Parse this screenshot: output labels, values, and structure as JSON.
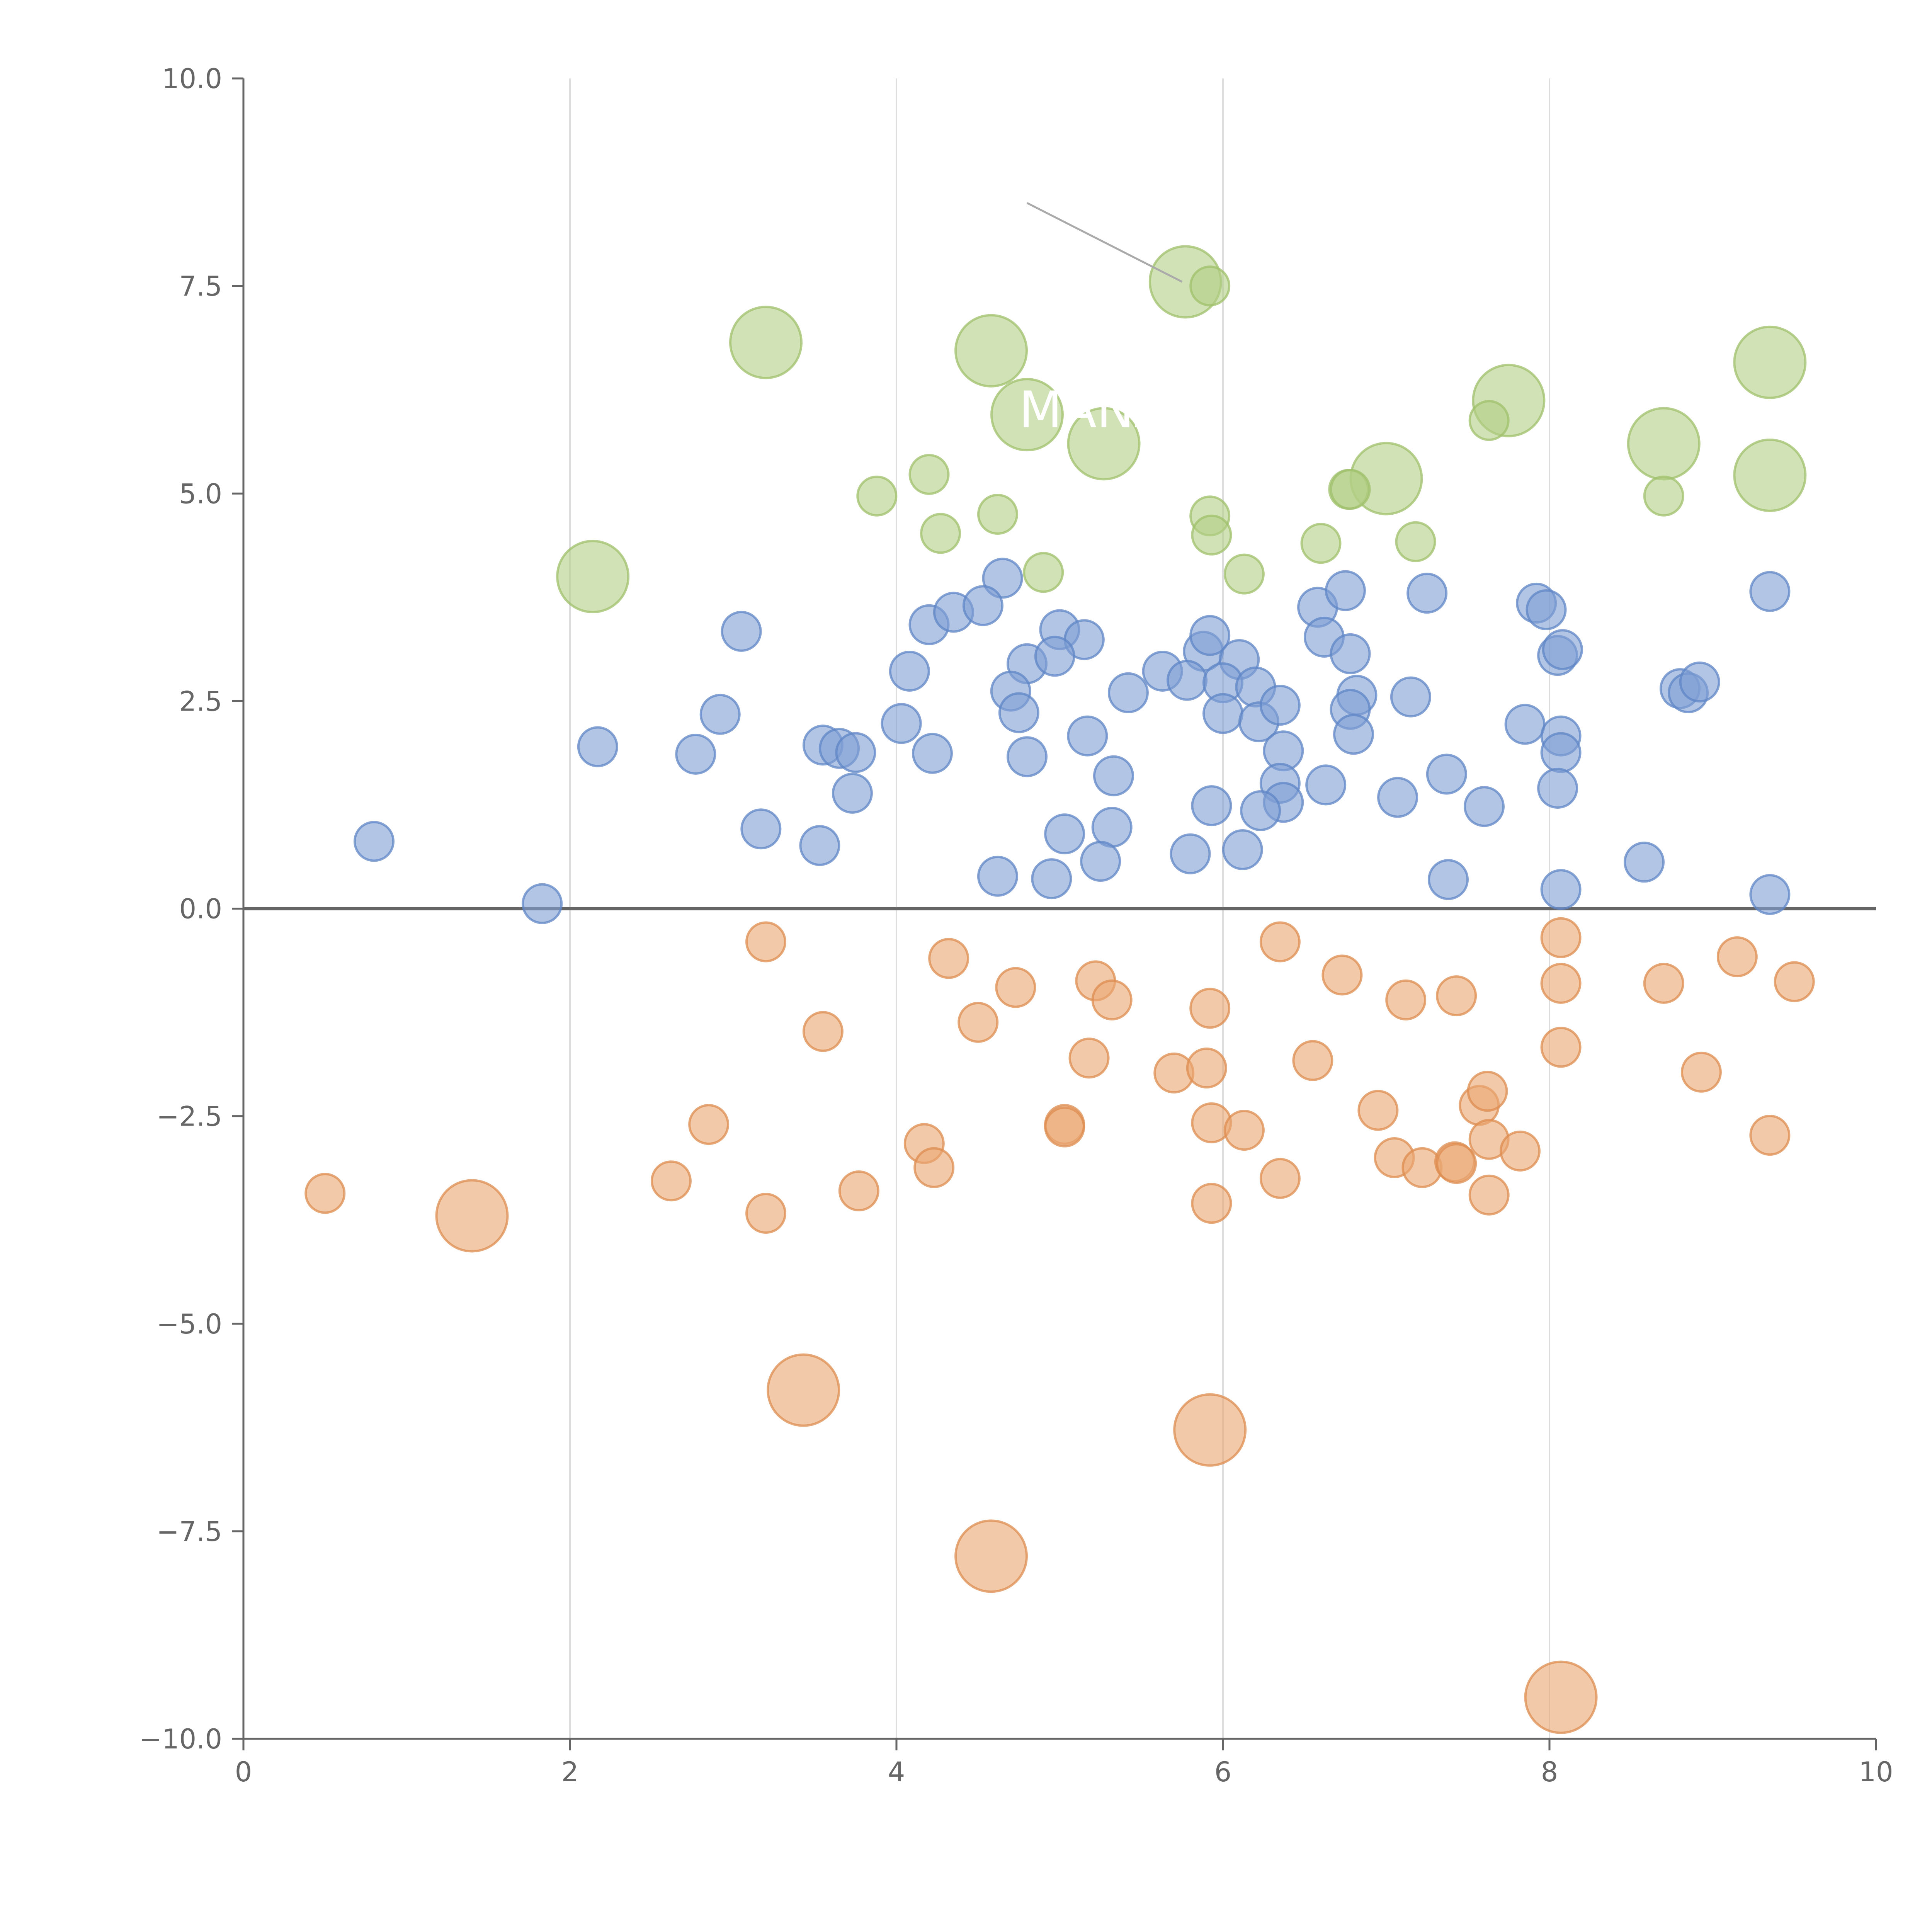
{
  "chart_data": {
    "type": "scatter",
    "title": "",
    "xlabel": "",
    "ylabel": "",
    "xlim": [
      0,
      10
    ],
    "ylim": [
      -10,
      10
    ],
    "x_ticks": [
      "0",
      "2",
      "4",
      "6",
      "8",
      "10"
    ],
    "y_ticks": [
      "−10.0",
      "−7.5",
      "−5.0",
      "−2.5",
      "0.0",
      "2.5",
      "5.0",
      "7.5",
      "10.0"
    ],
    "x_tick_values": [
      0,
      2,
      4,
      6,
      8,
      10
    ],
    "y_tick_values": [
      -10,
      -7.5,
      -5,
      -2.5,
      0,
      2.5,
      5,
      7.5,
      10
    ],
    "grid": "vertical",
    "zero_line": true,
    "colors": {
      "green_fill": "#b3cf85",
      "green_stroke": "#9fc06b",
      "blue_fill": "#7f9fd3",
      "blue_stroke": "#5f86c6",
      "orange_fill": "#e9a772",
      "orange_stroke": "#de8c4f",
      "axis": "#666666",
      "grid": "#dddddd"
    },
    "series": [
      {
        "name": "green",
        "points": [
          [
            5.77,
            7.55,
            3
          ],
          [
            5.92,
            7.5,
            1
          ],
          [
            3.2,
            6.82,
            3
          ],
          [
            4.58,
            6.72,
            3
          ],
          [
            9.35,
            6.58,
            3
          ],
          [
            7.75,
            6.12,
            3
          ],
          [
            4.8,
            5.95,
            3
          ],
          [
            5.27,
            5.6,
            3
          ],
          [
            8.7,
            5.6,
            3
          ],
          [
            7.63,
            5.88,
            1
          ],
          [
            4.2,
            5.23,
            1
          ],
          [
            9.35,
            5.22,
            3
          ],
          [
            7.0,
            5.18,
            3
          ],
          [
            6.77,
            5.05,
            1
          ],
          [
            6.78,
            5.05,
            1
          ],
          [
            3.88,
            4.97,
            1
          ],
          [
            8.7,
            4.97,
            1
          ],
          [
            4.62,
            4.75,
            1
          ],
          [
            5.92,
            4.73,
            1
          ],
          [
            4.27,
            4.52,
            1
          ],
          [
            5.93,
            4.5,
            1
          ],
          [
            7.18,
            4.42,
            1
          ],
          [
            6.6,
            4.4,
            1
          ],
          [
            4.9,
            4.05,
            1
          ],
          [
            6.13,
            4.03,
            1
          ],
          [
            2.14,
            4.0,
            3
          ]
        ]
      },
      {
        "name": "blue",
        "points": [
          [
            4.65,
            3.98
          ],
          [
            3.05,
            3.34
          ],
          [
            4.2,
            3.42
          ],
          [
            4.35,
            3.57
          ],
          [
            4.53,
            3.65
          ],
          [
            5.0,
            3.36
          ],
          [
            5.15,
            3.24
          ],
          [
            4.8,
            2.95
          ],
          [
            4.97,
            3.04
          ],
          [
            4.08,
            2.86
          ],
          [
            4.7,
            2.62
          ],
          [
            5.63,
            2.86
          ],
          [
            5.88,
            3.1
          ],
          [
            5.92,
            3.29
          ],
          [
            6.1,
            3.0
          ],
          [
            5.78,
            2.75
          ],
          [
            6.0,
            2.72
          ],
          [
            6.2,
            2.67
          ],
          [
            5.42,
            2.6
          ],
          [
            4.75,
            2.36
          ],
          [
            6.0,
            2.35
          ],
          [
            6.22,
            2.25
          ],
          [
            6.35,
            2.45
          ],
          [
            6.58,
            3.63
          ],
          [
            6.62,
            3.27
          ],
          [
            6.75,
            3.83
          ],
          [
            6.78,
            3.07
          ],
          [
            6.82,
            2.57
          ],
          [
            6.78,
            2.4
          ],
          [
            6.8,
            2.1
          ],
          [
            7.15,
            2.55
          ],
          [
            7.25,
            3.8
          ],
          [
            7.92,
            3.68
          ],
          [
            7.98,
            3.6
          ],
          [
            8.05,
            3.05
          ],
          [
            8.08,
            3.12
          ],
          [
            7.85,
            2.22
          ],
          [
            8.07,
            2.08
          ],
          [
            8.07,
            1.88
          ],
          [
            8.05,
            1.45
          ],
          [
            8.07,
            0.23
          ],
          [
            8.8,
            2.65
          ],
          [
            8.85,
            2.6
          ],
          [
            8.92,
            2.73
          ],
          [
            9.35,
            3.82
          ],
          [
            9.35,
            0.17
          ],
          [
            8.58,
            0.56
          ],
          [
            7.37,
            1.62
          ],
          [
            7.6,
            1.23
          ],
          [
            7.07,
            1.34
          ],
          [
            7.38,
            0.35
          ],
          [
            6.63,
            1.49
          ],
          [
            6.37,
            1.9
          ],
          [
            6.35,
            1.51
          ],
          [
            6.37,
            1.28
          ],
          [
            6.23,
            1.18
          ],
          [
            5.93,
            1.24
          ],
          [
            6.12,
            0.71
          ],
          [
            5.8,
            0.66
          ],
          [
            5.33,
            1.6
          ],
          [
            5.32,
            0.98
          ],
          [
            5.03,
            0.9
          ],
          [
            5.25,
            0.57
          ],
          [
            4.95,
            0.36
          ],
          [
            4.62,
            0.39
          ],
          [
            5.17,
            2.08
          ],
          [
            4.8,
            1.83
          ],
          [
            4.22,
            1.87
          ],
          [
            4.03,
            2.23
          ],
          [
            3.55,
            1.97
          ],
          [
            3.65,
            1.93
          ],
          [
            3.75,
            1.88
          ],
          [
            3.73,
            1.39
          ],
          [
            3.53,
            0.76
          ],
          [
            3.17,
            0.96
          ],
          [
            2.92,
            2.34
          ],
          [
            2.77,
            1.86
          ],
          [
            2.17,
            1.95
          ],
          [
            1.83,
            0.06
          ],
          [
            0.8,
            0.81
          ]
        ]
      },
      {
        "name": "orange",
        "points": [
          [
            3.2,
            -0.4,
            1
          ],
          [
            4.32,
            -0.6,
            1
          ],
          [
            4.73,
            -0.95,
            1
          ],
          [
            5.22,
            -0.87,
            1
          ],
          [
            5.32,
            -1.1,
            1
          ],
          [
            5.92,
            -1.2,
            1
          ],
          [
            6.35,
            -0.4,
            1
          ],
          [
            6.73,
            -0.8,
            1
          ],
          [
            7.12,
            -1.1,
            1
          ],
          [
            7.43,
            -1.05,
            1
          ],
          [
            8.07,
            -0.35,
            1
          ],
          [
            8.07,
            -0.9,
            1
          ],
          [
            8.07,
            -1.67,
            1
          ],
          [
            8.7,
            -0.9,
            1
          ],
          [
            9.15,
            -0.58,
            1
          ],
          [
            9.5,
            -0.88,
            1
          ],
          [
            8.93,
            -1.97,
            1
          ],
          [
            9.35,
            -2.73,
            1
          ],
          [
            3.55,
            -1.48,
            1
          ],
          [
            4.5,
            -1.37,
            1
          ],
          [
            5.18,
            -1.8,
            1
          ],
          [
            5.7,
            -1.98,
            1
          ],
          [
            5.9,
            -1.92,
            1
          ],
          [
            6.55,
            -1.83,
            1
          ],
          [
            2.85,
            -2.6,
            1
          ],
          [
            4.17,
            -2.83,
            1
          ],
          [
            4.23,
            -3.12,
            1
          ],
          [
            5.03,
            -2.6,
            1
          ],
          [
            5.03,
            -2.63,
            1
          ],
          [
            5.93,
            -2.58,
            1
          ],
          [
            6.13,
            -2.67,
            1
          ],
          [
            6.35,
            -3.25,
            1
          ],
          [
            5.93,
            -3.55,
            1
          ],
          [
            6.95,
            -2.43,
            1
          ],
          [
            7.05,
            -3.0,
            1
          ],
          [
            7.22,
            -3.12,
            1
          ],
          [
            7.42,
            -3.05,
            1
          ],
          [
            7.43,
            -3.07,
            1
          ],
          [
            7.57,
            -2.37,
            1
          ],
          [
            7.62,
            -2.2,
            1
          ],
          [
            7.63,
            -2.78,
            1
          ],
          [
            7.82,
            -2.92,
            1
          ],
          [
            7.63,
            -3.45,
            1
          ],
          [
            2.62,
            -3.28,
            1
          ],
          [
            3.2,
            -3.67,
            1
          ],
          [
            3.77,
            -3.4,
            1
          ],
          [
            0.5,
            -3.43,
            1
          ],
          [
            1.4,
            -3.7,
            3
          ],
          [
            3.43,
            -5.8,
            3
          ],
          [
            5.92,
            -6.28,
            3
          ],
          [
            4.58,
            -7.8,
            3
          ],
          [
            8.07,
            -9.5,
            3
          ]
        ]
      }
    ],
    "annotations": [
      {
        "text": "MANA",
        "x": 4.75,
        "y": 5.8
      }
    ]
  }
}
